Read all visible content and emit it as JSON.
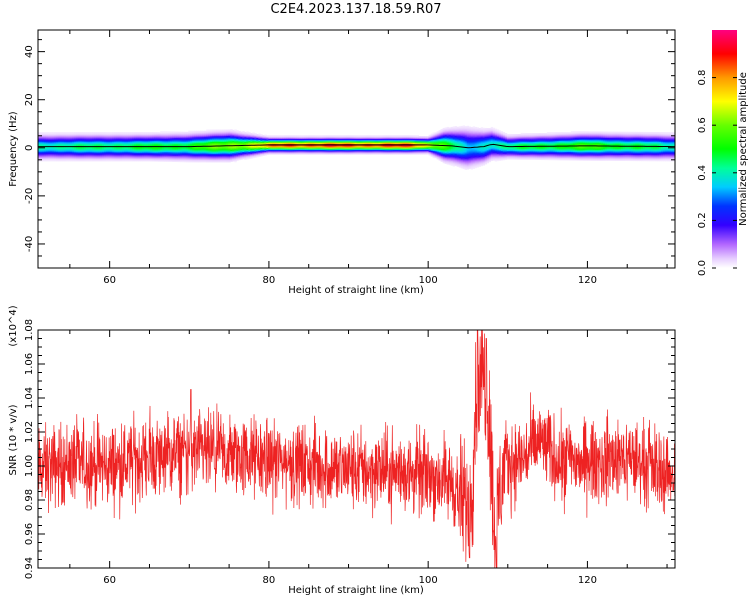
{
  "title": "C2E4.2023.137.18.59.R07",
  "colors": {
    "snr_line": "#ee2222",
    "axes": "#000000",
    "background": "#ffffff"
  },
  "chart_data": [
    {
      "type": "heatmap",
      "title": "",
      "xlabel": "Height of straight line (km)",
      "ylabel": "Frequency (Hz)",
      "xlim": [
        51,
        131
      ],
      "ylim": [
        -50,
        49
      ],
      "xticks": [
        60,
        80,
        100,
        120
      ],
      "yticks": [
        40,
        20,
        0,
        -20,
        -40
      ],
      "colorbar": {
        "label": "Normalized spectral amplitude",
        "range": [
          0,
          1
        ],
        "ticks": [
          "0.0",
          "0.2",
          "0.4",
          "0.6",
          "0.8"
        ],
        "colormap": "rainbow"
      },
      "band": {
        "center_frequency": [
          [
            51,
            0.5
          ],
          [
            60,
            0.5
          ],
          [
            70,
            0.5
          ],
          [
            80,
            1.2
          ],
          [
            90,
            1.2
          ],
          [
            100,
            1.2
          ],
          [
            103,
            0.8
          ],
          [
            105,
            0.0
          ],
          [
            107,
            0.5
          ],
          [
            108,
            1.5
          ],
          [
            110,
            0.5
          ],
          [
            120,
            0.8
          ],
          [
            131,
            0.5
          ]
        ],
        "halfwidth": [
          [
            51,
            2.5
          ],
          [
            65,
            2.5
          ],
          [
            75,
            2.8
          ],
          [
            80,
            1.5
          ],
          [
            100,
            1.5
          ],
          [
            102,
            3.0
          ],
          [
            105,
            4.0
          ],
          [
            108,
            3.0
          ],
          [
            110,
            2.2
          ],
          [
            120,
            2.5
          ],
          [
            131,
            2.5
          ]
        ],
        "peak_amplitude": [
          [
            51,
            0.45
          ],
          [
            70,
            0.55
          ],
          [
            78,
            0.75
          ],
          [
            82,
            0.95
          ],
          [
            98,
            0.95
          ],
          [
            102,
            0.6
          ],
          [
            105,
            0.35
          ],
          [
            108,
            0.45
          ],
          [
            112,
            0.5
          ],
          [
            120,
            0.6
          ],
          [
            131,
            0.45
          ]
        ]
      }
    },
    {
      "type": "line",
      "title": "",
      "xlabel": "Height of straight line (km)",
      "ylabel": "SNR (10 * v/v)",
      "y_multiplier": "(x10^4)",
      "xlim": [
        51,
        131
      ],
      "ylim": [
        0.94,
        1.08
      ],
      "xticks": [
        60,
        80,
        100,
        120
      ],
      "yticks": [
        "0.94",
        "0.96",
        "0.98",
        "1.00",
        "1.02",
        "1.04",
        "1.06",
        "1.08"
      ],
      "series": [
        {
          "name": "",
          "color": "#ee2222",
          "baseline": [
            [
              51,
              0.998
            ],
            [
              55,
              1.002
            ],
            [
              60,
              1.0
            ],
            [
              65,
              1.005
            ],
            [
              70,
              1.008
            ],
            [
              75,
              1.006
            ],
            [
              80,
              1.004
            ],
            [
              85,
              1.0
            ],
            [
              90,
              0.998
            ],
            [
              95,
              0.997
            ],
            [
              100,
              0.995
            ],
            [
              103,
              0.99
            ],
            [
              104.5,
              0.975
            ],
            [
              105.5,
              0.985
            ],
            [
              106,
              1.04
            ],
            [
              106.5,
              1.06
            ],
            [
              107.2,
              1.05
            ],
            [
              107.8,
              1.02
            ],
            [
              108.3,
              0.96
            ],
            [
              108.8,
              0.98
            ],
            [
              109.5,
              1.0
            ],
            [
              112,
              1.005
            ],
            [
              114,
              1.015
            ],
            [
              116,
              1.005
            ],
            [
              120,
              1.002
            ],
            [
              125,
              1.005
            ],
            [
              131,
              0.995
            ]
          ],
          "noise_amplitude": 0.012,
          "extrema": [
            {
              "x": 106.2,
              "y": 1.08
            },
            {
              "x": 107.3,
              "y": 1.075
            },
            {
              "x": 108.6,
              "y": 0.94
            },
            {
              "x": 105.2,
              "y": 0.946
            },
            {
              "x": 70.2,
              "y": 1.045
            }
          ]
        }
      ]
    }
  ]
}
